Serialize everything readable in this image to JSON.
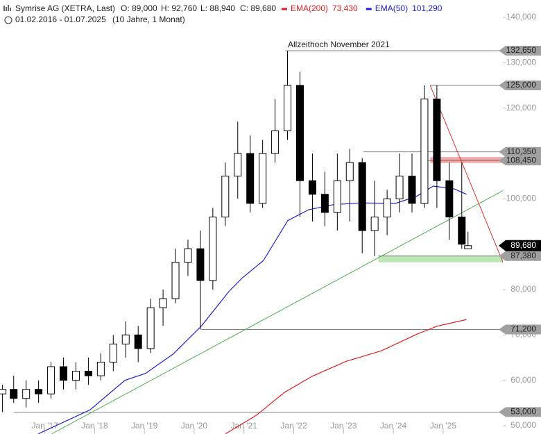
{
  "chart_data": {
    "type": "candlestick",
    "title": "Symrise AG (XETRA, Last)",
    "ohlc_labels": [
      "O: 89,000",
      "H: 92,760",
      "L: 88,940",
      "C: 89,680"
    ],
    "period": "01.02.2016 - 01.07.2025",
    "period_note": "(10 Jahre, 1 Monat)",
    "annotation": "Allzeithoch November 2021",
    "xlim": [
      2016.1,
      2026.2
    ],
    "xticks": [
      {
        "value": 2017,
        "label": "Jan '17"
      },
      {
        "value": 2018,
        "label": "Jan '18"
      },
      {
        "value": 2019,
        "label": "Jan '19"
      },
      {
        "value": 2020,
        "label": "Jan '20"
      },
      {
        "value": 2021,
        "label": "Jan '21"
      },
      {
        "value": 2022,
        "label": "Jan '22"
      },
      {
        "value": 2023,
        "label": "Jan '23"
      },
      {
        "value": 2024,
        "label": "Jan '24"
      },
      {
        "value": 2025,
        "label": "Jan '25"
      }
    ],
    "ylim": [
      50000,
      140000
    ],
    "yticks": [
      {
        "value": 50000,
        "label": "50,000"
      },
      {
        "value": 60000,
        "label": "60,000"
      },
      {
        "value": 70000,
        "label": "70,000"
      },
      {
        "value": 80000,
        "label": "80,000"
      },
      {
        "value": 90000,
        "label": "90,000"
      },
      {
        "value": 100000,
        "label": "100,000"
      },
      {
        "value": 110000,
        "label": "110,000"
      },
      {
        "value": 120000,
        "label": "120,000"
      },
      {
        "value": 130000,
        "label": "130,000"
      },
      {
        "value": 140000,
        "label": "140,000"
      }
    ],
    "candles": {
      "x": [
        2016.15,
        2016.375,
        2016.625,
        2016.875,
        2017.125,
        2017.375,
        2017.625,
        2017.875,
        2018.125,
        2018.375,
        2018.625,
        2018.875,
        2019.125,
        2019.375,
        2019.625,
        2019.875,
        2020.125,
        2020.375,
        2020.625,
        2020.875,
        2021.125,
        2021.375,
        2021.625,
        2021.875,
        2022.125,
        2022.375,
        2022.625,
        2022.875,
        2023.125,
        2023.375,
        2023.625,
        2023.875,
        2024.125,
        2024.375,
        2024.625,
        2024.875,
        2025.125,
        2025.375,
        2025.5
      ],
      "open": [
        57000,
        58000,
        56000,
        58000,
        57000,
        63000,
        60000,
        62000,
        61000,
        64000,
        68000,
        70000,
        67000,
        76000,
        78000,
        86000,
        89000,
        82000,
        96000,
        105000,
        110000,
        99000,
        110000,
        115000,
        125000,
        104000,
        101000,
        97000,
        104000,
        108000,
        93000,
        96000,
        100000,
        105000,
        99000,
        122000,
        104000,
        96000,
        89000
      ],
      "high": [
        59000,
        61000,
        60000,
        60000,
        64000,
        65000,
        64000,
        65000,
        66000,
        70000,
        73000,
        72000,
        78000,
        80000,
        89000,
        91000,
        93000,
        98000,
        108000,
        117000,
        114000,
        113000,
        122000,
        132650,
        128000,
        110000,
        106000,
        110000,
        111000,
        109000,
        104000,
        102000,
        110000,
        110000,
        125000,
        125000,
        108000,
        108000,
        92760
      ],
      "low": [
        53000,
        55000,
        54000,
        55000,
        56000,
        58000,
        58000,
        59000,
        60000,
        62000,
        65000,
        64000,
        66000,
        72000,
        77000,
        83000,
        71200,
        80000,
        94000,
        100000,
        97000,
        98000,
        108000,
        113000,
        96000,
        95000,
        94000,
        93000,
        95000,
        88000,
        87380,
        92000,
        97000,
        97000,
        98000,
        98000,
        91000,
        89000,
        88940
      ],
      "close": [
        58000,
        56000,
        58000,
        57000,
        63000,
        60000,
        62000,
        61000,
        64000,
        68000,
        70000,
        67000,
        76000,
        78000,
        86000,
        89000,
        82000,
        96000,
        105000,
        110000,
        99000,
        110000,
        115000,
        125000,
        104000,
        101000,
        97000,
        104000,
        108000,
        93000,
        96000,
        100000,
        105000,
        99000,
        122000,
        104000,
        96000,
        90000,
        89680
      ],
      "up_color": "#ffffff",
      "down_color": "#000000"
    },
    "series": [
      {
        "name": "EMA(200)",
        "legend_value": "73,430",
        "color": "#e02020",
        "x": [
          2020.63,
          2021.25,
          2021.81,
          2022.37,
          2023.06,
          2023.76,
          2024.46,
          2024.87,
          2025.47
        ],
        "values": [
          48200,
          52300,
          57300,
          60900,
          64200,
          66500,
          70100,
          71900,
          73400
        ]
      },
      {
        "name": "EMA(50)",
        "legend_value": "101,290",
        "color": "#2020d0",
        "x": [
          2016.87,
          2017.91,
          2018.61,
          2019.02,
          2019.58,
          2020.14,
          2020.7,
          2020.97,
          2021.39,
          2021.88,
          2022.3,
          2022.79,
          2023.34,
          2024.04,
          2024.46,
          2024.8,
          2025.22,
          2025.47
        ],
        "values": [
          48200,
          53500,
          60000,
          61500,
          65800,
          71900,
          79600,
          82600,
          86400,
          95200,
          97600,
          98700,
          99100,
          99000,
          100500,
          102800,
          102200,
          101000
        ]
      }
    ],
    "trendlines": [
      {
        "color": "#4caf50",
        "x": [
          2017.14,
          2026.96
        ],
        "values": [
          48200,
          106300
        ]
      },
      {
        "color": "#e03030",
        "x": [
          2024.74,
          2026.96
        ],
        "values": [
          125000,
          65800
        ]
      }
    ],
    "zones": [
      {
        "color": "#f4a6a6",
        "from": 2024.74,
        "low": 107900,
        "high": 109200
      },
      {
        "color": "#bfe6b5",
        "from": 2023.7,
        "low": 86000,
        "high": 87500
      }
    ],
    "levels": [
      {
        "value": 132650,
        "label": "132,650",
        "from": 2021.83
      },
      {
        "value": 125000,
        "label": "125,000",
        "from": 2024.74
      },
      {
        "value": 110350,
        "label": "110,350",
        "from": 2023.4
      },
      {
        "value": 108450,
        "label": "108,450",
        "from": 2024.57
      },
      {
        "value": 87380,
        "label": "87,380",
        "from": 2023.7
      },
      {
        "value": 71200,
        "label": "71,200",
        "from": 2020.14
      },
      {
        "value": 53000,
        "label": "53,000",
        "from": 2016.38
      }
    ],
    "last_price": {
      "value": 89680,
      "label": "89,680"
    }
  }
}
